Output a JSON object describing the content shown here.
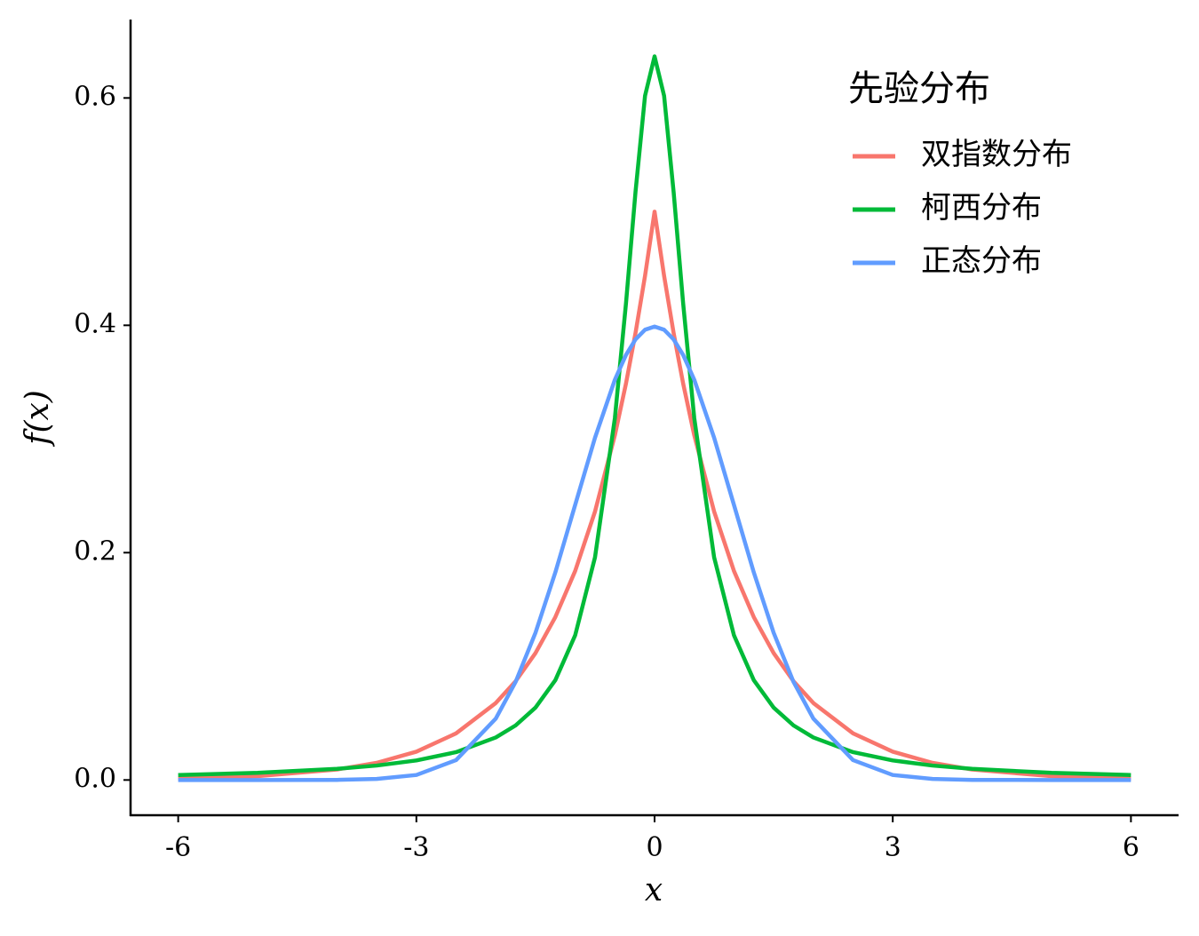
{
  "chart_data": {
    "type": "line",
    "xlabel": "x",
    "ylabel": "f(x)",
    "x": [
      -6,
      -5,
      -4,
      -3.5,
      -3,
      -2.5,
      -2,
      -1.75,
      -1.5,
      -1.25,
      -1,
      -0.75,
      -0.5,
      -0.36,
      -0.24,
      -0.12,
      0,
      0.12,
      0.24,
      0.36,
      0.5,
      0.75,
      1,
      1.25,
      1.5,
      1.75,
      2,
      2.5,
      3,
      3.5,
      4,
      5,
      6
    ],
    "series": [
      {
        "name": "双指数分布",
        "color": "#f8766d",
        "values": [
          0.0012,
          0.0034,
          0.0092,
          0.0151,
          0.0249,
          0.041,
          0.0677,
          0.0869,
          0.1116,
          0.1433,
          0.1839,
          0.2362,
          0.3033,
          0.3488,
          0.3933,
          0.4435,
          0.5,
          0.4435,
          0.3933,
          0.3488,
          0.3033,
          0.2362,
          0.1839,
          0.1433,
          0.1116,
          0.0869,
          0.0677,
          0.041,
          0.0249,
          0.0151,
          0.0092,
          0.0034,
          0.0012
        ]
      },
      {
        "name": "柯西分布",
        "color": "#00ba38",
        "values": [
          0.0044,
          0.0063,
          0.0098,
          0.0127,
          0.0172,
          0.0245,
          0.0374,
          0.048,
          0.0637,
          0.0878,
          0.1273,
          0.1959,
          0.3183,
          0.4193,
          0.5174,
          0.6019,
          0.6366,
          0.6019,
          0.5174,
          0.4193,
          0.3183,
          0.1959,
          0.1273,
          0.0878,
          0.0637,
          0.048,
          0.0374,
          0.0245,
          0.0172,
          0.0127,
          0.0098,
          0.0063,
          0.0044
        ]
      },
      {
        "name": "正态分布",
        "color": "#619cff",
        "values": [
          0.0,
          0.0,
          0.0001,
          0.0009,
          0.0044,
          0.0175,
          0.054,
          0.0863,
          0.1295,
          0.1826,
          0.242,
          0.3011,
          0.3521,
          0.3739,
          0.3876,
          0.3961,
          0.3989,
          0.3961,
          0.3876,
          0.3739,
          0.3521,
          0.3011,
          0.242,
          0.1826,
          0.1295,
          0.0863,
          0.054,
          0.0175,
          0.0044,
          0.0009,
          0.0001,
          0.0,
          0.0
        ]
      }
    ],
    "xlim": [
      -6.6,
      6.6
    ],
    "ylim": [
      -0.031,
      0.669
    ],
    "xticks": [
      -6,
      -3,
      0,
      3,
      6
    ],
    "yticks": [
      {
        "value": 0,
        "label": "0.0"
      },
      0.2,
      0.4,
      0.6
    ],
    "legend": {
      "title": "先验分布",
      "position": "upper right"
    },
    "grid": false
  }
}
